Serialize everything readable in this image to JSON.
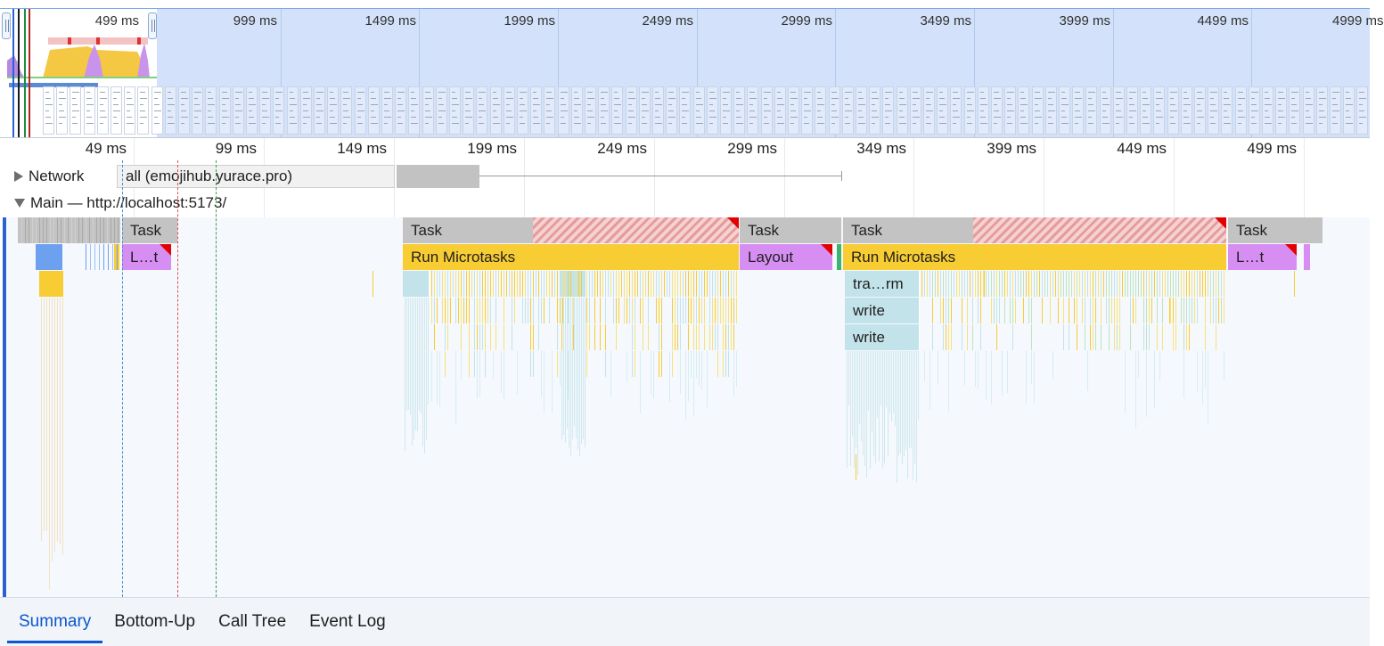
{
  "overview": {
    "window_label": "499 ms",
    "tick_labels": [
      "999 ms",
      "1499 ms",
      "1999 ms",
      "2499 ms",
      "2999 ms",
      "3499 ms",
      "3999 ms",
      "4499 ms",
      "4999 ms"
    ]
  },
  "ruler": {
    "tick_labels": [
      "49 ms",
      "99 ms",
      "149 ms",
      "199 ms",
      "249 ms",
      "299 ms",
      "349 ms",
      "399 ms",
      "449 ms",
      "499 ms"
    ]
  },
  "tracks": {
    "network": {
      "title": "Network",
      "request_label": "all (emojihub.yurace.pro)"
    },
    "main": {
      "title": "Main — http://localhost:5173/"
    }
  },
  "flame": {
    "task_label": "Task",
    "short_layout_label": "L…t",
    "run_microtasks_label": "Run Microtasks",
    "layout_label": "Layout",
    "transform_label": "tra…rm",
    "write_label": "write"
  },
  "tabs": [
    "Summary",
    "Bottom-Up",
    "Call Tree",
    "Event Log"
  ],
  "active_tab": "Summary",
  "colors": {
    "task": "#c3c3c3",
    "scripting": "#f8cc33",
    "rendering": "#d68ef3",
    "function_call": "#c2e3ea",
    "long_task": "#e30000",
    "accent": "#0b57d0"
  }
}
